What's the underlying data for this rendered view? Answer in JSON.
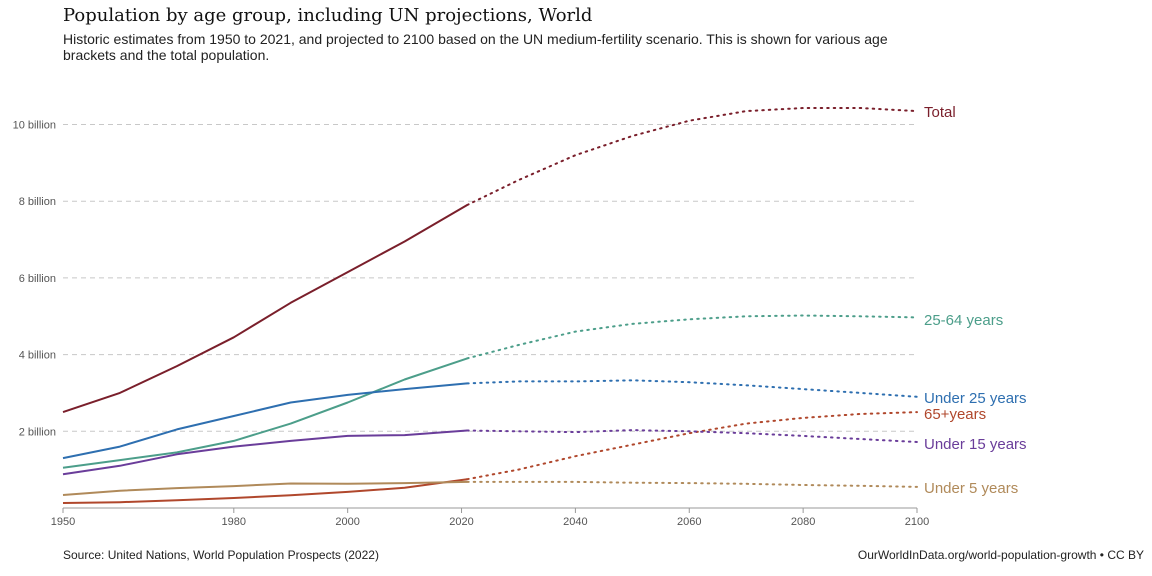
{
  "header": {
    "title": "Population by age group, including UN projections, World",
    "subtitle": "Historic estimates from 1950 to 2021, and projected to 2100 based on the UN medium-fertility scenario. This is shown for various age brackets and the total population."
  },
  "footer": {
    "source": "Source: United Nations, World Population Prospects (2022)",
    "credit": "OurWorldInData.org/world-population-growth • CC BY"
  },
  "chart_data": {
    "type": "line",
    "x_ticks": [
      1950,
      1980,
      2000,
      2020,
      2040,
      2060,
      2080,
      2100
    ],
    "y_ticks": [
      2000000000,
      4000000000,
      6000000000,
      8000000000,
      10000000000
    ],
    "y_tick_labels": [
      "2 billion",
      "4 billion",
      "6 billion",
      "8 billion",
      "10 billion"
    ],
    "xlim": [
      1950,
      2100
    ],
    "ylim": [
      0,
      10800000000
    ],
    "grid": "horizontal dashed",
    "legend": "labels at line ends (right)",
    "projection_start": 2021,
    "series": [
      {
        "name": "Total",
        "color": "#7a1f2b",
        "x": [
          1950,
          1960,
          1970,
          1980,
          1990,
          2000,
          2010,
          2021,
          2030,
          2040,
          2050,
          2060,
          2070,
          2080,
          2090,
          2100
        ],
        "values": [
          2.5,
          3.0,
          3.7,
          4.45,
          5.35,
          6.15,
          6.95,
          7.9,
          8.55,
          9.2,
          9.7,
          10.1,
          10.35,
          10.43,
          10.43,
          10.35
        ]
      },
      {
        "name": "25-64 years",
        "color": "#4c9e8a",
        "x": [
          1950,
          1960,
          1970,
          1980,
          1990,
          2000,
          2010,
          2021,
          2030,
          2040,
          2050,
          2060,
          2070,
          2080,
          2090,
          2100
        ],
        "values": [
          1.05,
          1.25,
          1.45,
          1.75,
          2.2,
          2.75,
          3.35,
          3.9,
          4.25,
          4.6,
          4.8,
          4.92,
          5.0,
          5.02,
          5.0,
          4.97
        ]
      },
      {
        "name": "Under 25 years",
        "color": "#2e6fb0",
        "x": [
          1950,
          1960,
          1970,
          1980,
          1990,
          2000,
          2010,
          2021,
          2030,
          2040,
          2050,
          2060,
          2070,
          2080,
          2090,
          2100
        ],
        "values": [
          1.3,
          1.6,
          2.05,
          2.4,
          2.75,
          2.95,
          3.1,
          3.25,
          3.3,
          3.3,
          3.33,
          3.28,
          3.2,
          3.1,
          3.0,
          2.9
        ]
      },
      {
        "name": "65+years",
        "color": "#b0472c",
        "x": [
          1950,
          1960,
          1970,
          1980,
          1990,
          2000,
          2010,
          2021,
          2030,
          2040,
          2050,
          2060,
          2070,
          2080,
          2090,
          2100
        ],
        "values": [
          0.13,
          0.15,
          0.2,
          0.26,
          0.33,
          0.42,
          0.53,
          0.75,
          1.0,
          1.35,
          1.65,
          1.95,
          2.2,
          2.35,
          2.45,
          2.5
        ]
      },
      {
        "name": "Under 15 years",
        "color": "#6a3d9a",
        "x": [
          1950,
          1960,
          1970,
          1980,
          1990,
          2000,
          2010,
          2021,
          2030,
          2040,
          2050,
          2060,
          2070,
          2080,
          2090,
          2100
        ],
        "values": [
          0.88,
          1.1,
          1.4,
          1.6,
          1.75,
          1.88,
          1.9,
          2.02,
          2.0,
          1.98,
          2.03,
          2.0,
          1.95,
          1.88,
          1.8,
          1.72
        ]
      },
      {
        "name": "Under 5 years",
        "color": "#b08a5a",
        "x": [
          1950,
          1960,
          1970,
          1980,
          1990,
          2000,
          2010,
          2021,
          2030,
          2040,
          2050,
          2060,
          2070,
          2080,
          2090,
          2100
        ],
        "values": [
          0.34,
          0.45,
          0.52,
          0.57,
          0.64,
          0.63,
          0.65,
          0.68,
          0.68,
          0.68,
          0.66,
          0.65,
          0.63,
          0.6,
          0.58,
          0.55
        ]
      }
    ]
  }
}
